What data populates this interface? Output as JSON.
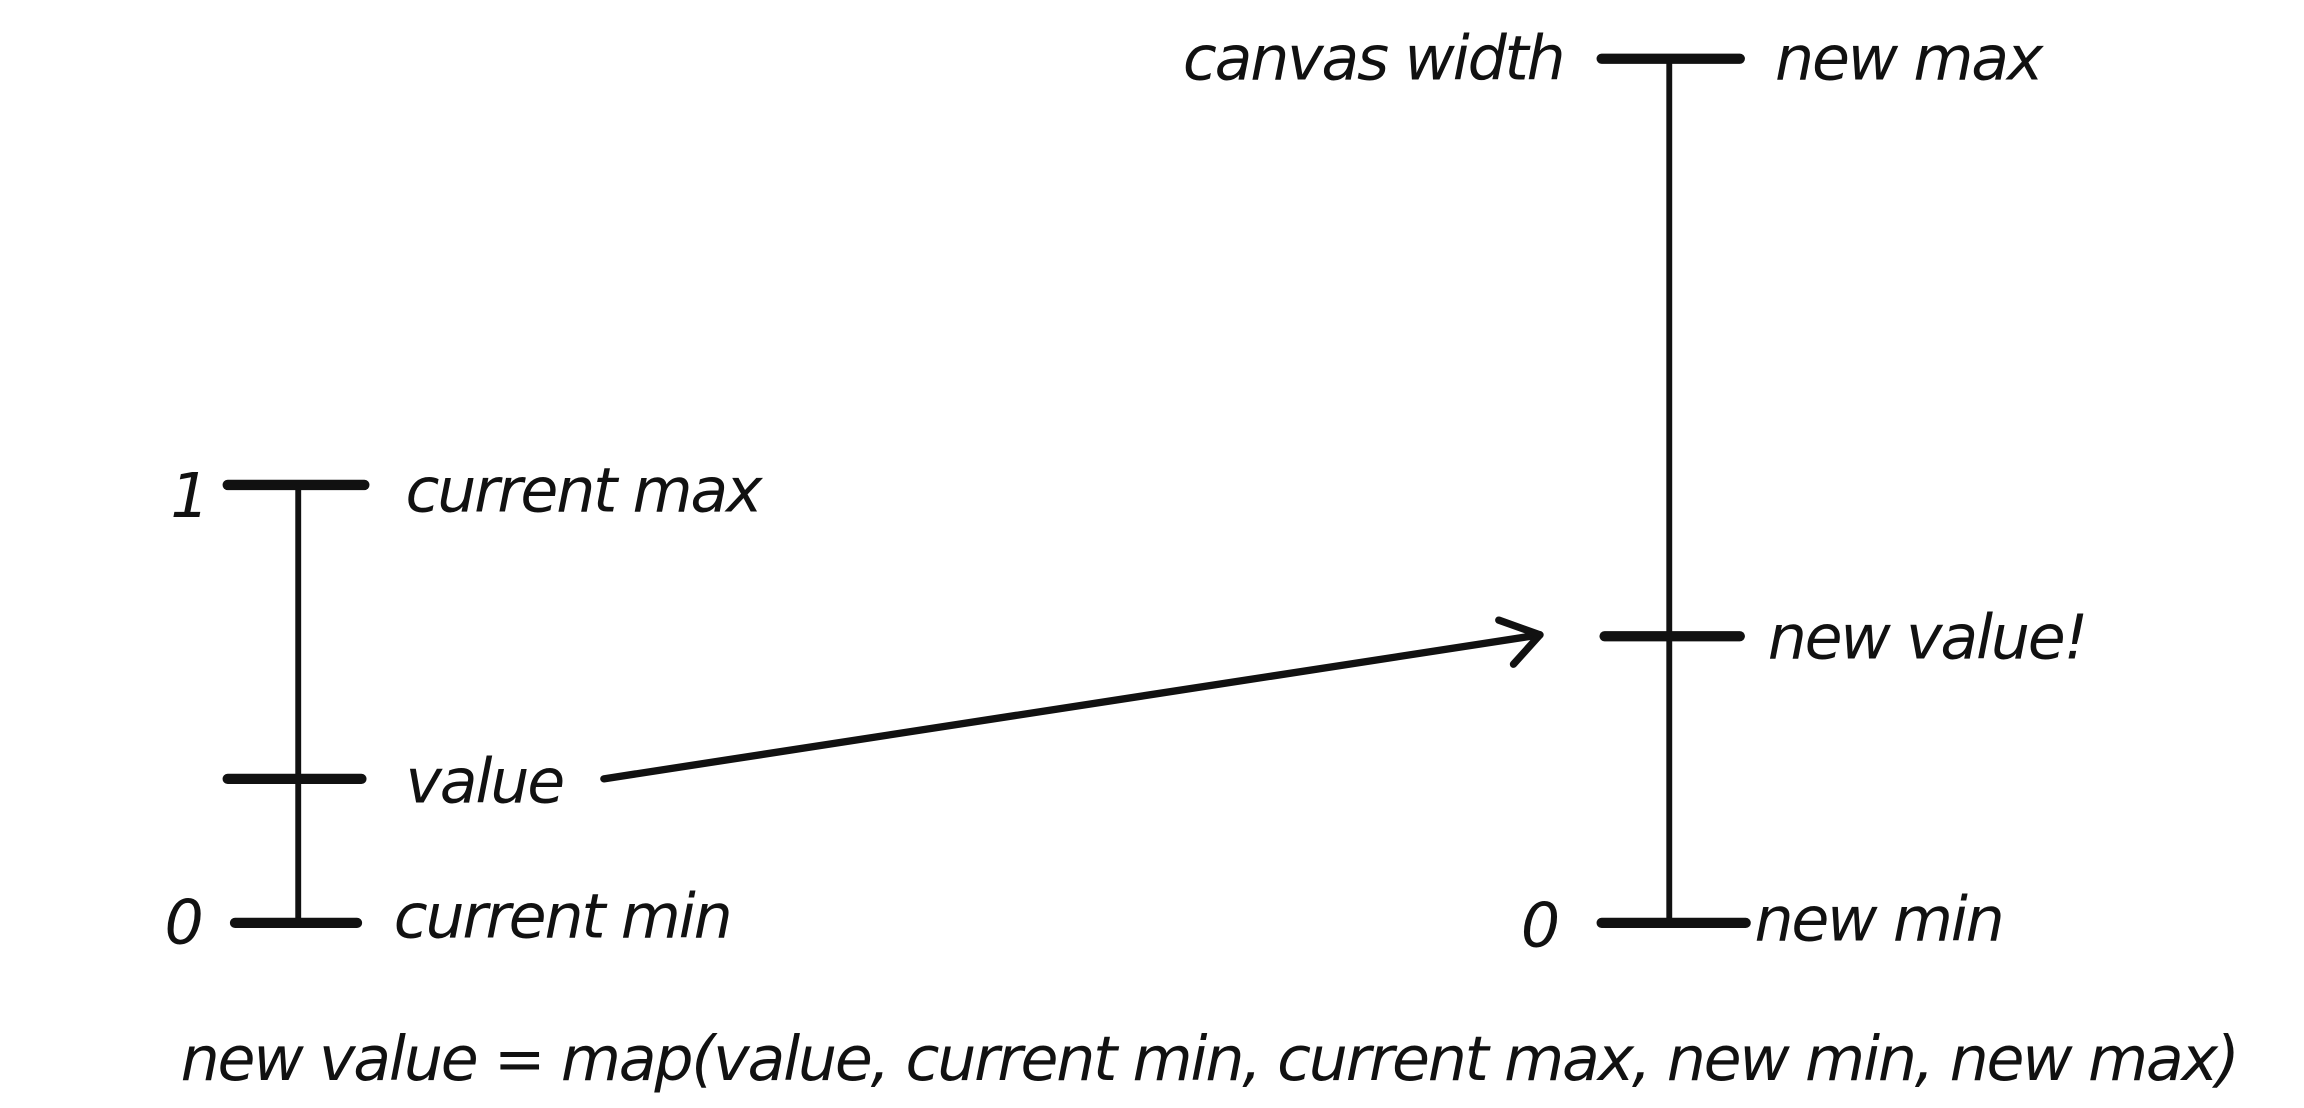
{
  "left_scale": {
    "top_number": "1",
    "bottom_number": "0",
    "max_label": "current max",
    "value_label": "value",
    "min_label": "current min"
  },
  "right_scale": {
    "top_number": "canvas width",
    "bottom_number": "0",
    "max_label": "new max",
    "value_label": "new value!",
    "min_label": "new min"
  },
  "formula": "new value = map(value, current min, current max, new min, new max)",
  "ink_color": "#111111"
}
